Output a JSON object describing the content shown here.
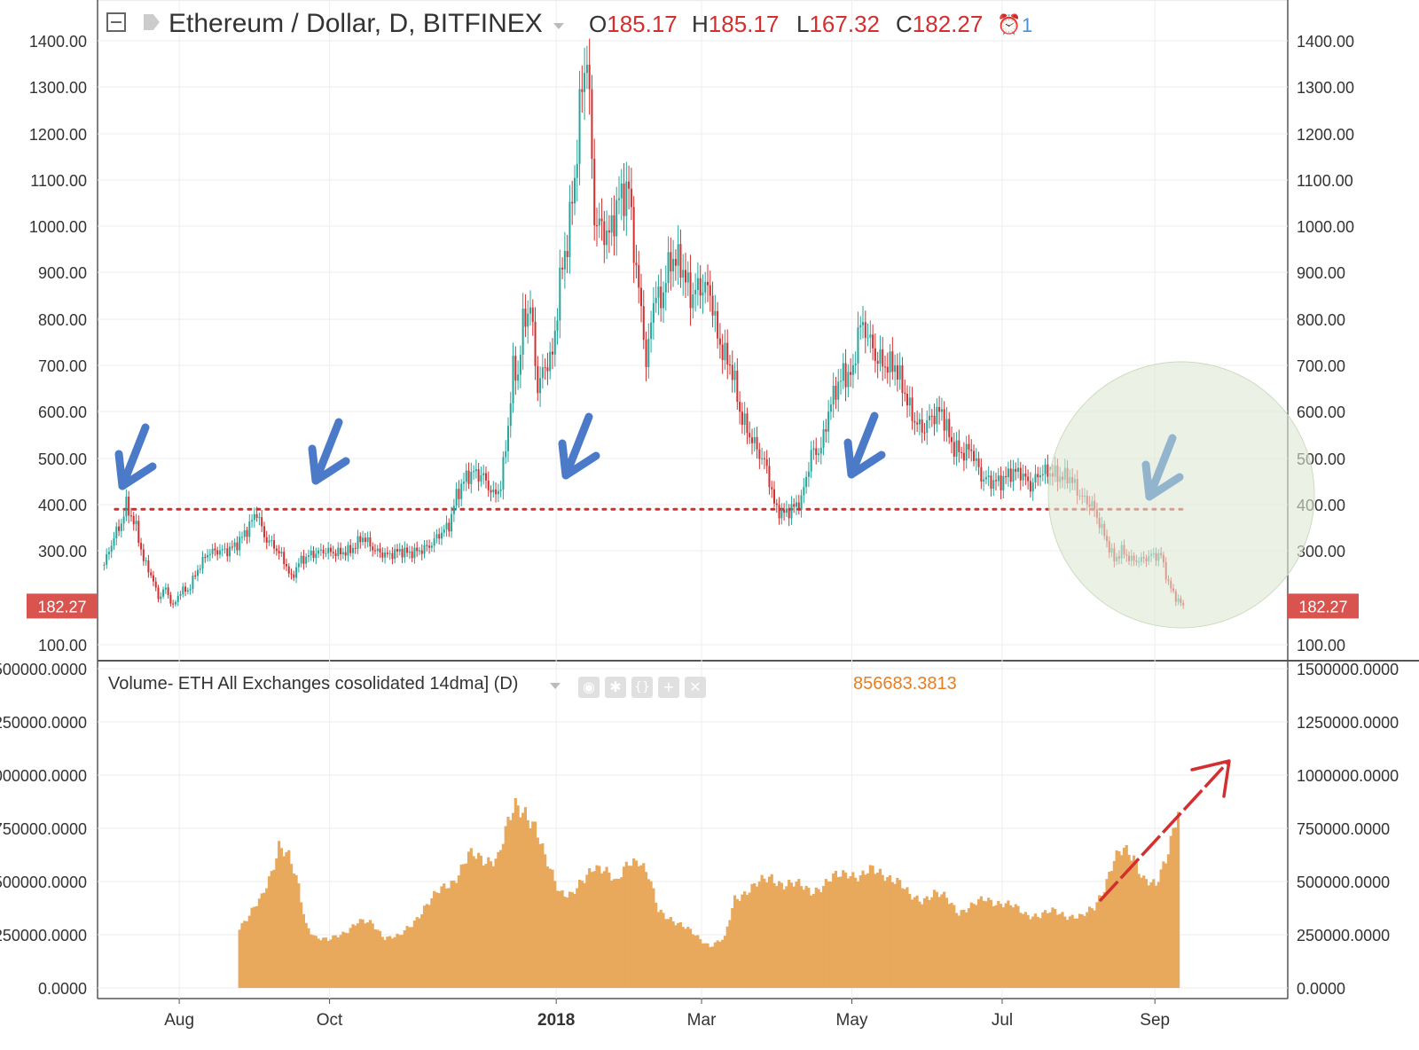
{
  "header": {
    "title": "Ethereum / Dollar, D, BITFINEX",
    "open_label": "O",
    "open_value": "185.17",
    "high_label": "H",
    "high_value": "185.17",
    "low_label": "L",
    "low_value": "167.32",
    "close_label": "C",
    "close_value": "182.27",
    "alert_count": "1"
  },
  "indicator": {
    "title": "Volume- ETH All Exchanges cosolidated 14dma] (D)",
    "value": "856683.3813"
  },
  "colors": {
    "up": "#26a69a",
    "down": "#d32f2f",
    "volume": "#e8a95c",
    "arrow": "#4a7ac8",
    "circle": "#dfe8d4",
    "support": "#d32f2f"
  },
  "chart_data": [
    {
      "type": "candlestick",
      "title": "Ethereum / Dollar, D, BITFINEX",
      "x_ticks": [
        "Aug",
        "Oct",
        "2018",
        "Mar",
        "May",
        "Jul",
        "Sep"
      ],
      "y_ticks": [
        "100.00",
        "300.00",
        "400.00",
        "500.00",
        "600.00",
        "700.00",
        "800.00",
        "900.00",
        "1000.00",
        "1100.00",
        "1200.00",
        "1300.00",
        "1400.00"
      ],
      "ylim": [
        70,
        1450
      ],
      "last_price_label": "182.27",
      "support_level": 390,
      "close_path": [
        [
          "2017-07-01",
          270
        ],
        [
          "2017-07-05",
          330
        ],
        [
          "2017-07-08",
          360
        ],
        [
          "2017-07-10",
          400
        ],
        [
          "2017-07-14",
          350
        ],
        [
          "2017-07-17",
          280
        ],
        [
          "2017-07-20",
          250
        ],
        [
          "2017-07-23",
          200
        ],
        [
          "2017-07-26",
          220
        ],
        [
          "2017-07-29",
          180
        ],
        [
          "2017-08-01",
          215
        ],
        [
          "2017-08-04",
          215
        ],
        [
          "2017-08-08",
          260
        ],
        [
          "2017-08-12",
          295
        ],
        [
          "2017-08-16",
          300
        ],
        [
          "2017-08-20",
          300
        ],
        [
          "2017-08-24",
          315
        ],
        [
          "2017-08-28",
          345
        ],
        [
          "2017-09-01",
          385
        ],
        [
          "2017-09-04",
          330
        ],
        [
          "2017-09-08",
          310
        ],
        [
          "2017-09-12",
          280
        ],
        [
          "2017-09-15",
          240
        ],
        [
          "2017-09-18",
          275
        ],
        [
          "2017-09-22",
          290
        ],
        [
          "2017-09-28",
          300
        ],
        [
          "2017-10-04",
          295
        ],
        [
          "2017-10-09",
          300
        ],
        [
          "2017-10-14",
          330
        ],
        [
          "2017-10-19",
          300
        ],
        [
          "2017-10-24",
          290
        ],
        [
          "2017-10-29",
          300
        ],
        [
          "2017-11-02",
          295
        ],
        [
          "2017-11-06",
          300
        ],
        [
          "2017-11-10",
          310
        ],
        [
          "2017-11-14",
          335
        ],
        [
          "2017-11-18",
          355
        ],
        [
          "2017-11-21",
          420
        ],
        [
          "2017-11-25",
          460
        ],
        [
          "2017-11-28",
          470
        ],
        [
          "2017-12-02",
          460
        ],
        [
          "2017-12-06",
          420
        ],
        [
          "2017-12-09",
          440
        ],
        [
          "2017-12-12",
          570
        ],
        [
          "2017-12-14",
          690
        ],
        [
          "2017-12-16",
          680
        ],
        [
          "2017-12-18",
          790
        ],
        [
          "2017-12-21",
          830
        ],
        [
          "2017-12-24",
          650
        ],
        [
          "2017-12-27",
          700
        ],
        [
          "2017-12-30",
          720
        ],
        [
          "2018-01-02",
          880
        ],
        [
          "2018-01-05",
          970
        ],
        [
          "2018-01-08",
          1100
        ],
        [
          "2018-01-10",
          1250
        ],
        [
          "2018-01-13",
          1380
        ],
        [
          "2018-01-16",
          1020
        ],
        [
          "2018-01-18",
          1000
        ],
        [
          "2018-01-22",
          980
        ],
        [
          "2018-01-26",
          1060
        ],
        [
          "2018-01-30",
          1080
        ],
        [
          "2018-02-02",
          900
        ],
        [
          "2018-02-05",
          780
        ],
        [
          "2018-02-06",
          690
        ],
        [
          "2018-02-09",
          850
        ],
        [
          "2018-02-12",
          840
        ],
        [
          "2018-02-16",
          930
        ],
        [
          "2018-02-20",
          920
        ],
        [
          "2018-02-24",
          850
        ],
        [
          "2018-02-28",
          870
        ],
        [
          "2018-03-04",
          860
        ],
        [
          "2018-03-07",
          760
        ],
        [
          "2018-03-10",
          720
        ],
        [
          "2018-03-13",
          690
        ],
        [
          "2018-03-16",
          600
        ],
        [
          "2018-03-19",
          560
        ],
        [
          "2018-03-23",
          520
        ],
        [
          "2018-03-27",
          480
        ],
        [
          "2018-03-30",
          400
        ],
        [
          "2018-04-02",
          380
        ],
        [
          "2018-04-06",
          390
        ],
        [
          "2018-04-10",
          410
        ],
        [
          "2018-04-14",
          510
        ],
        [
          "2018-04-18",
          520
        ],
        [
          "2018-04-21",
          600
        ],
        [
          "2018-04-24",
          650
        ],
        [
          "2018-04-27",
          680
        ],
        [
          "2018-05-01",
          680
        ],
        [
          "2018-05-03",
          780
        ],
        [
          "2018-05-06",
          780
        ],
        [
          "2018-05-10",
          720
        ],
        [
          "2018-05-14",
          700
        ],
        [
          "2018-05-18",
          700
        ],
        [
          "2018-05-22",
          640
        ],
        [
          "2018-05-25",
          590
        ],
        [
          "2018-05-29",
          560
        ],
        [
          "2018-06-02",
          590
        ],
        [
          "2018-06-06",
          600
        ],
        [
          "2018-06-10",
          530
        ],
        [
          "2018-06-14",
          510
        ],
        [
          "2018-06-18",
          520
        ],
        [
          "2018-06-22",
          460
        ],
        [
          "2018-06-26",
          450
        ],
        [
          "2018-06-30",
          450
        ],
        [
          "2018-07-04",
          470
        ],
        [
          "2018-07-08",
          470
        ],
        [
          "2018-07-12",
          440
        ],
        [
          "2018-07-16",
          470
        ],
        [
          "2018-07-20",
          470
        ],
        [
          "2018-07-24",
          460
        ],
        [
          "2018-07-28",
          460
        ],
        [
          "2018-07-31",
          430
        ],
        [
          "2018-08-03",
          410
        ],
        [
          "2018-08-06",
          400
        ],
        [
          "2018-08-09",
          360
        ],
        [
          "2018-08-12",
          320
        ],
        [
          "2018-08-15",
          280
        ],
        [
          "2018-08-18",
          300
        ],
        [
          "2018-08-22",
          280
        ],
        [
          "2018-08-26",
          280
        ],
        [
          "2018-08-30",
          290
        ],
        [
          "2018-09-03",
          290
        ],
        [
          "2018-09-06",
          230
        ],
        [
          "2018-09-09",
          200
        ],
        [
          "2018-09-12",
          182
        ]
      ]
    },
    {
      "type": "area",
      "title": "Volume- ETH All Exchanges cosolidated 14dma] (D)",
      "y_ticks": [
        "0.0000",
        "250000.0000",
        "500000.0000",
        "750000.0000",
        "1000000.0000",
        "1250000.0000",
        "1500000.0000"
      ],
      "ylim": [
        0,
        1500000
      ],
      "current_value": "856683.3813",
      "series": [
        [
          "2017-08-25",
          290000
        ],
        [
          "2017-08-29",
          340000
        ],
        [
          "2017-09-03",
          420000
        ],
        [
          "2017-09-07",
          550000
        ],
        [
          "2017-09-10",
          680000
        ],
        [
          "2017-09-14",
          610000
        ],
        [
          "2017-09-18",
          470000
        ],
        [
          "2017-09-21",
          300000
        ],
        [
          "2017-09-25",
          240000
        ],
        [
          "2017-09-30",
          220000
        ],
        [
          "2017-10-06",
          260000
        ],
        [
          "2017-10-12",
          310000
        ],
        [
          "2017-10-18",
          300000
        ],
        [
          "2017-10-23",
          240000
        ],
        [
          "2017-10-29",
          240000
        ],
        [
          "2017-11-03",
          300000
        ],
        [
          "2017-11-08",
          380000
        ],
        [
          "2017-11-14",
          450000
        ],
        [
          "2017-11-20",
          510000
        ],
        [
          "2017-11-26",
          620000
        ],
        [
          "2017-12-02",
          600000
        ],
        [
          "2017-12-08",
          620000
        ],
        [
          "2017-12-12",
          760000
        ],
        [
          "2017-12-15",
          850000
        ],
        [
          "2017-12-19",
          840000
        ],
        [
          "2017-12-23",
          760000
        ],
        [
          "2017-12-27",
          600000
        ],
        [
          "2018-01-02",
          460000
        ],
        [
          "2018-01-07",
          440000
        ],
        [
          "2018-01-12",
          500000
        ],
        [
          "2018-01-16",
          580000
        ],
        [
          "2018-01-20",
          570000
        ],
        [
          "2018-01-25",
          480000
        ],
        [
          "2018-01-30",
          600000
        ],
        [
          "2018-02-03",
          610000
        ],
        [
          "2018-02-07",
          520000
        ],
        [
          "2018-02-11",
          360000
        ],
        [
          "2018-02-16",
          330000
        ],
        [
          "2018-02-22",
          280000
        ],
        [
          "2018-02-28",
          230000
        ],
        [
          "2018-03-04",
          200000
        ],
        [
          "2018-03-10",
          230000
        ],
        [
          "2018-03-14",
          420000
        ],
        [
          "2018-03-19",
          460000
        ],
        [
          "2018-03-24",
          490000
        ],
        [
          "2018-03-29",
          520000
        ],
        [
          "2018-04-03",
          490000
        ],
        [
          "2018-04-09",
          480000
        ],
        [
          "2018-04-14",
          460000
        ],
        [
          "2018-04-19",
          480000
        ],
        [
          "2018-04-24",
          520000
        ],
        [
          "2018-04-29",
          550000
        ],
        [
          "2018-05-04",
          520000
        ],
        [
          "2018-05-09",
          550000
        ],
        [
          "2018-05-14",
          540000
        ],
        [
          "2018-05-19",
          500000
        ],
        [
          "2018-05-24",
          430000
        ],
        [
          "2018-05-29",
          420000
        ],
        [
          "2018-06-03",
          440000
        ],
        [
          "2018-06-08",
          420000
        ],
        [
          "2018-06-13",
          360000
        ],
        [
          "2018-06-18",
          380000
        ],
        [
          "2018-06-24",
          420000
        ],
        [
          "2018-06-30",
          400000
        ],
        [
          "2018-07-05",
          380000
        ],
        [
          "2018-07-10",
          350000
        ],
        [
          "2018-07-16",
          340000
        ],
        [
          "2018-07-22",
          360000
        ],
        [
          "2018-07-28",
          340000
        ],
        [
          "2018-08-02",
          330000
        ],
        [
          "2018-08-07",
          380000
        ],
        [
          "2018-08-11",
          480000
        ],
        [
          "2018-08-15",
          600000
        ],
        [
          "2018-08-19",
          640000
        ],
        [
          "2018-08-23",
          620000
        ],
        [
          "2018-08-27",
          520000
        ],
        [
          "2018-09-01",
          470000
        ],
        [
          "2018-09-05",
          600000
        ],
        [
          "2018-09-08",
          760000
        ],
        [
          "2018-09-10",
          856683
        ]
      ]
    }
  ]
}
